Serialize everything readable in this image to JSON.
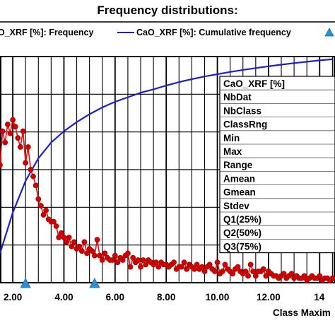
{
  "chart_data": {
    "type": "line",
    "title": "Frequency distributions:",
    "legend": [
      {
        "label": "O_XRF [%]: Frequency",
        "color": "#d40000",
        "marker": "circle"
      },
      {
        "label": "CaO_XRF [%]: Cumulative frequency",
        "color": "#1f1fc8",
        "marker": "line"
      },
      {
        "label": "",
        "color": "#2b8fd6",
        "marker": "triangle"
      }
    ],
    "xlabel": "Class Maxim",
    "x_ticks": [
      "2.00",
      "4.00",
      "6.00",
      "8.00",
      "10.00",
      "12.00",
      "14"
    ],
    "xlim": [
      1.5,
      14.6
    ],
    "freq_ylim": [
      0,
      1.0
    ],
    "cum_ylim": [
      0,
      1.0
    ],
    "grid": true,
    "legend_position": "top",
    "series": [
      {
        "name": "O_XRF [%]: Frequency",
        "color": "#d40000",
        "x": [
          1.5,
          1.6,
          1.7,
          1.8,
          1.9,
          2.0,
          2.1,
          2.2,
          2.3,
          2.4,
          2.5,
          2.6,
          2.7,
          2.8,
          2.9,
          3.0,
          3.1,
          3.2,
          3.3,
          3.4,
          3.5,
          3.6,
          3.7,
          3.8,
          3.9,
          4.0,
          4.1,
          4.2,
          4.3,
          4.4,
          4.5,
          4.6,
          4.7,
          4.8,
          4.9,
          5.0,
          5.1,
          5.2,
          5.3,
          5.4,
          5.5,
          5.6,
          5.7,
          5.8,
          5.9,
          6.0,
          6.1,
          6.2,
          6.3,
          6.4,
          6.5,
          6.6,
          6.7,
          6.8,
          6.9,
          7.0,
          7.1,
          7.2,
          7.3,
          7.4,
          7.5,
          7.6,
          7.7,
          7.8,
          7.9,
          8.0,
          8.1,
          8.2,
          8.3,
          8.4,
          8.5,
          8.6,
          8.7,
          8.8,
          8.9,
          9.0,
          9.1,
          9.2,
          9.3,
          9.4,
          9.5,
          9.6,
          9.7,
          9.8,
          9.9,
          10.0,
          10.1,
          10.2,
          10.3,
          10.4,
          10.5,
          10.6,
          10.7,
          10.8,
          10.9,
          11.0,
          11.1,
          11.2,
          11.3,
          11.4,
          11.5,
          11.6,
          11.7,
          11.8,
          11.9,
          12.0,
          12.1,
          12.2,
          12.3,
          12.4,
          12.5,
          12.6,
          12.7,
          12.8,
          12.9,
          13.0,
          13.1,
          13.2,
          13.3,
          13.4,
          13.5,
          13.6,
          13.7,
          13.8,
          13.9,
          14.0,
          14.1,
          14.2,
          14.3,
          14.4,
          14.5
        ],
        "values": [
          0.52,
          0.67,
          0.62,
          0.7,
          0.66,
          0.72,
          0.69,
          0.64,
          0.6,
          0.67,
          0.53,
          0.6,
          0.5,
          0.47,
          0.43,
          0.37,
          0.34,
          0.3,
          0.32,
          0.28,
          0.27,
          0.27,
          0.25,
          0.2,
          0.22,
          0.2,
          0.18,
          0.2,
          0.16,
          0.18,
          0.15,
          0.16,
          0.14,
          0.18,
          0.13,
          0.15,
          0.14,
          0.12,
          0.19,
          0.12,
          0.1,
          0.13,
          0.11,
          0.1,
          0.1,
          0.12,
          0.09,
          0.11,
          0.1,
          0.12,
          0.13,
          0.07,
          0.11,
          0.09,
          0.1,
          0.07,
          0.1,
          0.08,
          0.1,
          0.09,
          0.08,
          0.09,
          0.07,
          0.09,
          0.08,
          0.08,
          0.07,
          0.08,
          0.09,
          0.06,
          0.07,
          0.07,
          0.09,
          0.06,
          0.08,
          0.07,
          0.06,
          0.08,
          0.06,
          0.07,
          0.05,
          0.07,
          0.08,
          0.06,
          0.05,
          0.09,
          0.04,
          0.05,
          0.08,
          0.06,
          0.05,
          0.04,
          0.06,
          0.07,
          0.05,
          0.04,
          0.05,
          0.03,
          0.08,
          0.05,
          0.03,
          0.05,
          0.05,
          0.06,
          0.03,
          0.05,
          0.04,
          0.03,
          0.03,
          0.02,
          0.03,
          0.04,
          0.02,
          0.03,
          0.04,
          0.02,
          0.03,
          0.02,
          0.02,
          0.03,
          0.01,
          0.02,
          0.03,
          0.02,
          0.02,
          0.03,
          0.01,
          0.02,
          0.02,
          0.01,
          0.02
        ]
      },
      {
        "name": "CaO_XRF [%]: Cumulative frequency",
        "color": "#1f1fc8",
        "x": [
          1.5,
          2.0,
          2.5,
          3.0,
          3.5,
          4.0,
          4.5,
          5.0,
          5.5,
          6.0,
          6.5,
          7.0,
          7.5,
          8.0,
          8.5,
          9.0,
          9.5,
          10.0,
          10.5,
          11.0,
          11.5,
          12.0,
          12.5,
          13.0,
          13.5,
          14.0,
          14.5
        ],
        "values": [
          0.13,
          0.31,
          0.45,
          0.55,
          0.62,
          0.67,
          0.71,
          0.745,
          0.775,
          0.8,
          0.82,
          0.84,
          0.855,
          0.872,
          0.887,
          0.9,
          0.912,
          0.922,
          0.932,
          0.941,
          0.949,
          0.957,
          0.964,
          0.971,
          0.977,
          0.983,
          0.988
        ]
      }
    ],
    "quartile_markers_x": [
      2.5,
      5.2
    ],
    "stats_labels": [
      "CaO_XRF [%]",
      "NbDat",
      "NbClass",
      "ClassRng",
      "Min",
      "Max",
      "Range",
      "Amean",
      "Gmean",
      "Stdev",
      "Q1(25%)",
      "Q2(50%)",
      "Q3(75%)"
    ]
  }
}
